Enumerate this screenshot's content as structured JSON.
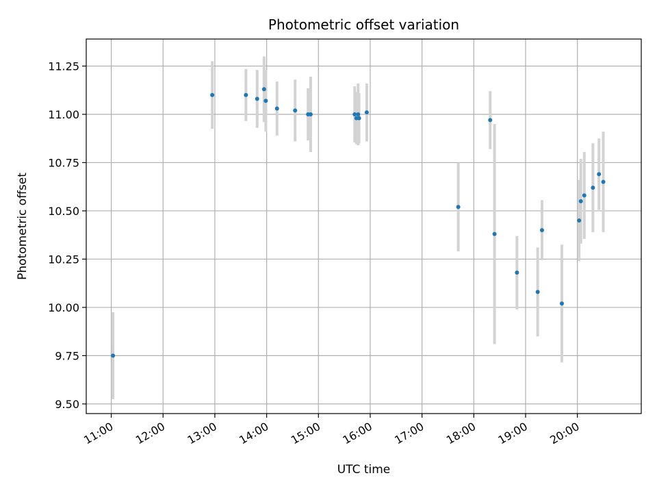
{
  "chart_data": {
    "type": "scatter",
    "title": "Photometric offset variation",
    "xlabel": "UTC time",
    "ylabel": "Photometric offset",
    "xlim": [
      "10:31",
      "21:14"
    ],
    "ylim": [
      9.45,
      11.39
    ],
    "x_ticks": [
      "11:00",
      "12:00",
      "13:00",
      "14:00",
      "15:00",
      "16:00",
      "17:00",
      "18:00",
      "19:00",
      "20:00"
    ],
    "y_ticks": [
      9.5,
      9.75,
      10.0,
      10.25,
      10.5,
      10.75,
      11.0,
      11.25
    ],
    "y_tick_labels": [
      "9.50",
      "9.75",
      "10.00",
      "10.25",
      "10.50",
      "10.75",
      "11.00",
      "11.25"
    ],
    "grid": true,
    "colors": {
      "points": "#1f77b4",
      "errorbars": "#d3d3d3",
      "grid": "#b0b0b0"
    },
    "points": [
      {
        "x": "11:02",
        "y": 9.75,
        "err": 0.225
      },
      {
        "x": "12:57",
        "y": 11.1,
        "err": 0.175
      },
      {
        "x": "13:36",
        "y": 11.1,
        "err": 0.135
      },
      {
        "x": "13:49",
        "y": 11.08,
        "err": 0.15
      },
      {
        "x": "13:57",
        "y": 11.13,
        "err": 0.17
      },
      {
        "x": "13:59",
        "y": 11.07,
        "err": 0.16
      },
      {
        "x": "14:12",
        "y": 11.03,
        "err": 0.14
      },
      {
        "x": "14:33",
        "y": 11.02,
        "err": 0.16
      },
      {
        "x": "14:48",
        "y": 11.0,
        "err": 0.135
      },
      {
        "x": "14:51",
        "y": 11.0,
        "err": 0.195
      },
      {
        "x": "15:42",
        "y": 11.0,
        "err": 0.145
      },
      {
        "x": "15:44",
        "y": 10.98,
        "err": 0.135
      },
      {
        "x": "15:46",
        "y": 11.0,
        "err": 0.16
      },
      {
        "x": "15:47",
        "y": 10.98,
        "err": 0.13
      },
      {
        "x": "15:56",
        "y": 11.01,
        "err": 0.15
      },
      {
        "x": "17:42",
        "y": 10.52,
        "err": 0.23
      },
      {
        "x": "18:19",
        "y": 10.97,
        "err": 0.15
      },
      {
        "x": "18:24",
        "y": 10.38,
        "err": 0.57
      },
      {
        "x": "18:50",
        "y": 10.18,
        "err": 0.19
      },
      {
        "x": "19:14",
        "y": 10.08,
        "err": 0.23
      },
      {
        "x": "19:19",
        "y": 10.4,
        "err": 0.155
      },
      {
        "x": "19:42",
        "y": 10.02,
        "err": 0.305
      },
      {
        "x": "20:02",
        "y": 10.45,
        "err": 0.21
      },
      {
        "x": "20:04",
        "y": 10.55,
        "err": 0.22
      },
      {
        "x": "20:08",
        "y": 10.58,
        "err": 0.225
      },
      {
        "x": "20:18",
        "y": 10.62,
        "err": 0.23
      },
      {
        "x": "20:25",
        "y": 10.69,
        "err": 0.185
      },
      {
        "x": "20:30",
        "y": 10.65,
        "err": 0.26
      }
    ]
  }
}
